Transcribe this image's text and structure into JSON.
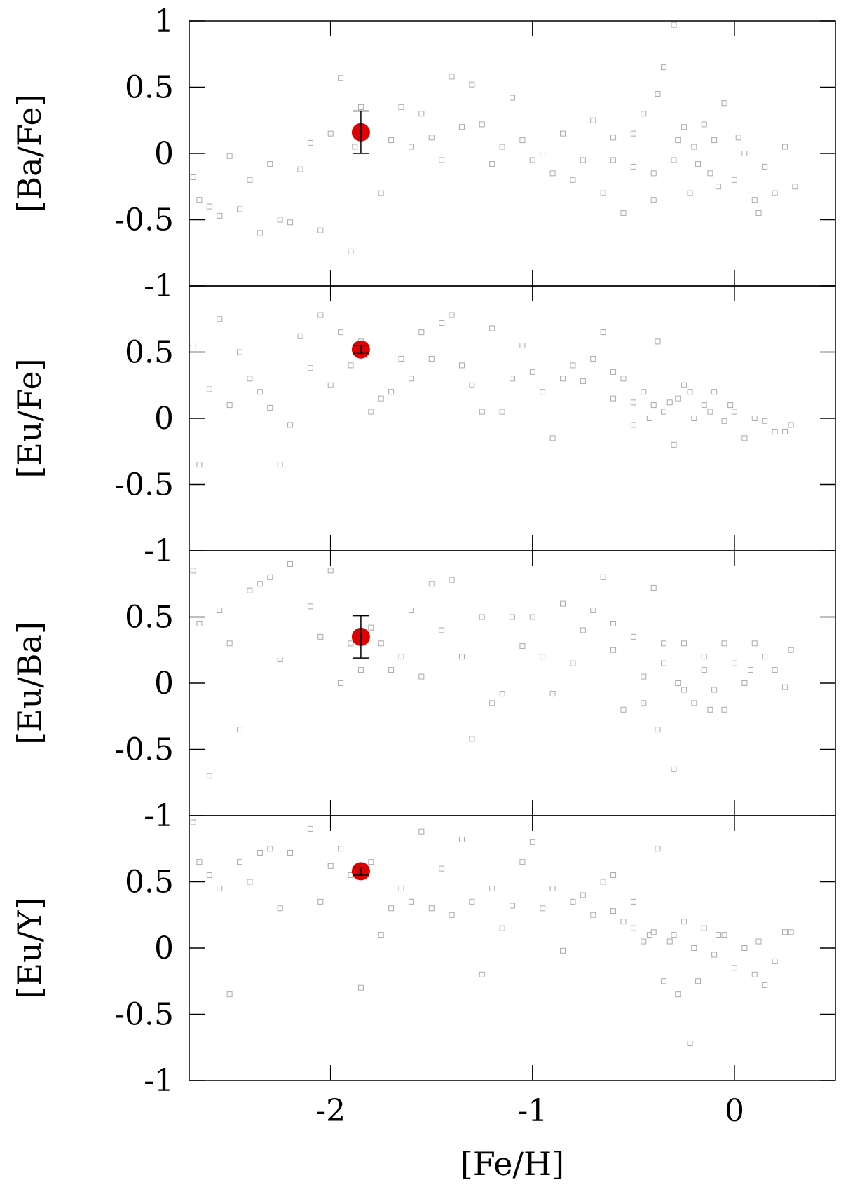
{
  "chart_data": [
    {
      "type": "scatter",
      "y_label": "[Ba/Fe]",
      "xlim": [
        -2.7,
        0.5
      ],
      "ylim": [
        -1,
        1
      ],
      "yticks": [
        -1,
        -0.5,
        0,
        0.5,
        1
      ],
      "series": [
        {
          "color": "#aaaaaa",
          "marker": "square",
          "x": [
            -2.68,
            -2.65,
            -2.6,
            -2.55,
            -2.5,
            -2.45,
            -2.4,
            -2.35,
            -2.3,
            -2.25,
            -2.2,
            -2.15,
            -2.1,
            -2.05,
            -2.0,
            -1.95,
            -1.9,
            -1.88,
            -1.85,
            -1.75,
            -1.7,
            -1.65,
            -1.6,
            -1.55,
            -1.5,
            -1.45,
            -1.4,
            -1.35,
            -1.3,
            -1.25,
            -1.2,
            -1.15,
            -1.1,
            -1.05,
            -1.0,
            -0.95,
            -0.9,
            -0.85,
            -0.8,
            -0.75,
            -0.7,
            -0.65,
            -0.6,
            -0.55,
            -0.5,
            -0.45,
            -0.4,
            -0.38,
            -0.35,
            -0.3,
            -0.3,
            -0.25,
            -0.22,
            -0.2,
            -0.15,
            -0.12,
            -0.1,
            -0.05,
            0.0,
            0.05,
            0.1,
            0.12,
            0.15,
            0.2,
            0.25,
            0.3,
            -0.6,
            -0.5,
            -0.4,
            -0.28,
            -0.18,
            -0.08,
            0.02,
            0.08
          ],
          "values": [
            -0.18,
            -0.35,
            -0.4,
            -0.47,
            -0.02,
            -0.42,
            -0.2,
            -0.6,
            -0.08,
            -0.5,
            -0.52,
            -0.12,
            0.08,
            -0.58,
            0.15,
            0.57,
            -0.74,
            0.05,
            0.35,
            -0.3,
            0.1,
            0.35,
            0.05,
            0.3,
            0.12,
            -0.05,
            0.58,
            0.2,
            0.52,
            0.22,
            -0.08,
            0.05,
            0.42,
            0.1,
            -0.05,
            0.0,
            -0.15,
            0.15,
            -0.2,
            -0.05,
            0.25,
            -0.3,
            0.12,
            -0.45,
            -0.1,
            0.3,
            -0.35,
            0.45,
            0.65,
            0.97,
            -0.05,
            0.2,
            -0.3,
            0.05,
            0.22,
            -0.15,
            0.1,
            0.38,
            -0.2,
            0.0,
            -0.35,
            -0.45,
            -0.1,
            -0.3,
            0.05,
            -0.25,
            -0.05,
            0.15,
            -0.15,
            0.1,
            -0.08,
            -0.25,
            0.12,
            -0.28
          ]
        },
        {
          "color": "#e00000",
          "marker": "circle",
          "x": [
            -1.85
          ],
          "values": [
            0.16
          ],
          "errors": [
            0.16
          ]
        }
      ]
    },
    {
      "type": "scatter",
      "y_label": "[Eu/Fe]",
      "xlim": [
        -2.7,
        0.5
      ],
      "ylim": [
        -1,
        1
      ],
      "yticks": [
        -1,
        -0.5,
        0,
        0.5
      ],
      "series": [
        {
          "color": "#aaaaaa",
          "marker": "square",
          "x": [
            -2.68,
            -2.65,
            -2.6,
            -2.55,
            -2.5,
            -2.45,
            -2.4,
            -2.35,
            -2.3,
            -2.25,
            -2.2,
            -2.15,
            -2.1,
            -2.05,
            -2.0,
            -1.95,
            -1.9,
            -1.85,
            -1.8,
            -1.75,
            -1.7,
            -1.65,
            -1.6,
            -1.55,
            -1.5,
            -1.45,
            -1.4,
            -1.35,
            -1.3,
            -1.25,
            -1.2,
            -1.15,
            -1.1,
            -1.05,
            -1.0,
            -0.95,
            -0.9,
            -0.85,
            -0.8,
            -0.75,
            -0.7,
            -0.65,
            -0.6,
            -0.55,
            -0.5,
            -0.45,
            -0.4,
            -0.38,
            -0.35,
            -0.3,
            -0.28,
            -0.25,
            -0.2,
            -0.15,
            -0.1,
            -0.05,
            0.0,
            0.05,
            0.1,
            0.15,
            0.2,
            0.25,
            0.28,
            -0.6,
            -0.5,
            -0.42,
            -0.32,
            -0.22,
            -0.12,
            -0.02
          ],
          "values": [
            0.55,
            -0.35,
            0.22,
            0.75,
            0.1,
            0.5,
            0.3,
            0.2,
            0.08,
            -0.35,
            -0.05,
            0.62,
            0.38,
            0.78,
            0.25,
            0.65,
            0.4,
            0.58,
            0.05,
            0.15,
            0.2,
            0.45,
            0.3,
            0.65,
            0.45,
            0.72,
            0.78,
            0.4,
            0.25,
            0.05,
            0.68,
            0.05,
            0.3,
            0.55,
            0.35,
            0.2,
            -0.15,
            0.3,
            0.4,
            0.28,
            0.45,
            0.65,
            0.15,
            0.3,
            -0.05,
            0.2,
            0.1,
            0.58,
            0.05,
            -0.2,
            0.15,
            0.25,
            0.0,
            0.1,
            0.2,
            -0.02,
            0.05,
            -0.15,
            0.0,
            -0.02,
            -0.1,
            -0.1,
            -0.05,
            0.35,
            0.12,
            0.0,
            0.12,
            0.2,
            0.05,
            0.1
          ]
        },
        {
          "color": "#e00000",
          "marker": "circle",
          "x": [
            -1.85
          ],
          "values": [
            0.52
          ],
          "errors": [
            0.03
          ]
        }
      ]
    },
    {
      "type": "scatter",
      "y_label": "[Eu/Ba]",
      "xlim": [
        -2.7,
        0.5
      ],
      "ylim": [
        -1,
        1
      ],
      "yticks": [
        -1,
        -0.5,
        0,
        0.5
      ],
      "series": [
        {
          "color": "#aaaaaa",
          "marker": "square",
          "x": [
            -2.68,
            -2.65,
            -2.6,
            -2.55,
            -2.5,
            -2.45,
            -2.4,
            -2.35,
            -2.3,
            -2.25,
            -2.2,
            -2.1,
            -2.05,
            -2.0,
            -1.95,
            -1.9,
            -1.85,
            -1.8,
            -1.75,
            -1.7,
            -1.65,
            -1.6,
            -1.55,
            -1.5,
            -1.45,
            -1.4,
            -1.35,
            -1.3,
            -1.25,
            -1.2,
            -1.15,
            -1.1,
            -1.05,
            -1.0,
            -0.95,
            -0.9,
            -0.85,
            -0.8,
            -0.75,
            -0.7,
            -0.65,
            -0.6,
            -0.55,
            -0.5,
            -0.45,
            -0.4,
            -0.38,
            -0.35,
            -0.3,
            -0.28,
            -0.25,
            -0.2,
            -0.15,
            -0.1,
            -0.05,
            0.0,
            0.05,
            0.1,
            0.15,
            0.2,
            0.25,
            0.28,
            -0.45,
            -0.35,
            -0.25,
            -0.15,
            -0.05,
            0.08,
            -0.6,
            -0.12
          ],
          "values": [
            0.85,
            0.45,
            -0.7,
            0.55,
            0.3,
            -0.35,
            0.7,
            0.75,
            0.8,
            0.18,
            0.9,
            0.58,
            0.35,
            0.85,
            0.0,
            0.3,
            0.1,
            0.42,
            0.3,
            0.1,
            0.2,
            0.55,
            0.05,
            0.75,
            0.4,
            0.78,
            0.2,
            -0.42,
            0.5,
            -0.15,
            -0.08,
            0.5,
            0.28,
            0.5,
            0.2,
            -0.08,
            0.6,
            0.15,
            0.4,
            0.55,
            0.8,
            0.25,
            -0.2,
            0.35,
            0.05,
            0.72,
            -0.35,
            0.15,
            -0.65,
            0.0,
            0.3,
            -0.15,
            0.2,
            -0.05,
            0.3,
            0.15,
            0.0,
            0.3,
            0.2,
            0.1,
            -0.03,
            0.25,
            -0.15,
            0.3,
            -0.05,
            0.1,
            -0.2,
            0.1,
            0.45,
            -0.2
          ]
        },
        {
          "color": "#e00000",
          "marker": "circle",
          "x": [
            -1.85
          ],
          "values": [
            0.35
          ],
          "errors": [
            0.16
          ]
        }
      ]
    },
    {
      "type": "scatter",
      "y_label": "[Eu/Y]",
      "x_label": "[Fe/H]",
      "xlim": [
        -2.7,
        0.5
      ],
      "ylim": [
        -1,
        1
      ],
      "yticks": [
        -1,
        -0.5,
        0,
        0.5
      ],
      "xticks": [
        -2,
        -1,
        0
      ],
      "series": [
        {
          "color": "#aaaaaa",
          "marker": "square",
          "x": [
            -2.68,
            -2.65,
            -2.6,
            -2.55,
            -2.5,
            -2.45,
            -2.4,
            -2.35,
            -2.3,
            -2.25,
            -2.2,
            -2.1,
            -2.05,
            -2.0,
            -1.95,
            -1.9,
            -1.85,
            -1.8,
            -1.75,
            -1.7,
            -1.65,
            -1.6,
            -1.55,
            -1.5,
            -1.45,
            -1.4,
            -1.35,
            -1.3,
            -1.25,
            -1.2,
            -1.15,
            -1.1,
            -1.05,
            -1.0,
            -0.95,
            -0.9,
            -0.85,
            -0.8,
            -0.75,
            -0.7,
            -0.65,
            -0.6,
            -0.55,
            -0.5,
            -0.45,
            -0.4,
            -0.38,
            -0.35,
            -0.3,
            -0.28,
            -0.25,
            -0.22,
            -0.2,
            -0.15,
            -0.1,
            -0.05,
            0.0,
            0.05,
            0.1,
            0.12,
            0.15,
            0.2,
            0.25,
            0.28,
            -0.6,
            -0.5,
            -0.42,
            -0.32,
            -0.18,
            -0.08
          ],
          "values": [
            0.95,
            0.65,
            0.55,
            0.45,
            -0.35,
            0.65,
            0.5,
            0.72,
            0.75,
            0.3,
            0.72,
            0.9,
            0.35,
            0.62,
            0.75,
            0.55,
            -0.3,
            0.65,
            0.1,
            0.3,
            0.45,
            0.35,
            0.88,
            0.3,
            0.6,
            0.25,
            0.82,
            0.35,
            -0.2,
            0.45,
            0.15,
            0.32,
            0.65,
            0.8,
            0.3,
            0.45,
            -0.02,
            0.35,
            0.4,
            0.25,
            0.5,
            0.55,
            0.2,
            0.35,
            0.05,
            0.12,
            0.75,
            -0.25,
            0.1,
            -0.35,
            0.2,
            -0.72,
            0.0,
            0.15,
            -0.05,
            0.1,
            -0.15,
            0.0,
            -0.2,
            0.05,
            -0.28,
            -0.1,
            0.12,
            0.12,
            0.28,
            0.15,
            0.1,
            0.05,
            -0.25,
            0.1
          ]
        },
        {
          "color": "#e00000",
          "marker": "circle",
          "x": [
            -1.85
          ],
          "values": [
            0.58
          ],
          "errors": [
            0.03
          ]
        }
      ]
    }
  ]
}
